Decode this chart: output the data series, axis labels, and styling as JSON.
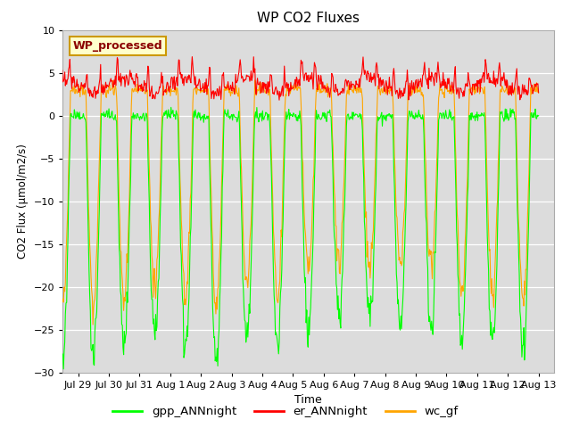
{
  "title": "WP CO2 Fluxes",
  "xlabel": "Time",
  "ylabel": "CO2 Flux (μmol/m2/s)",
  "ylim": [
    -30,
    10
  ],
  "yticks": [
    -30,
    -25,
    -20,
    -15,
    -10,
    -5,
    0,
    5,
    10
  ],
  "legend_label": "WP_processed",
  "gpp_color": "#00FF00",
  "er_color": "#FF0000",
  "wc_color": "#FFA500",
  "background_color": "#DCDCDC",
  "figure_color": "#FFFFFF",
  "linewidth": 0.8,
  "title_fontsize": 11,
  "tick_labels": [
    "Jul 29",
    "Jul 30",
    "Jul 31",
    "Aug 1",
    "Aug 2",
    "Aug 3",
    "Aug 4",
    "Aug 5",
    "Aug 6",
    "Aug 7",
    "Aug 8",
    "Aug 9",
    "Aug 10",
    "Aug 11",
    "Aug 12",
    "Aug 13"
  ]
}
